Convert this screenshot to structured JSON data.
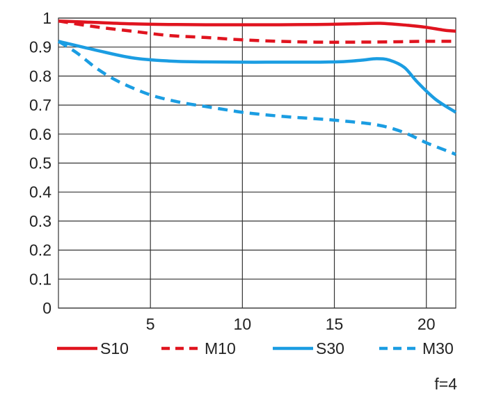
{
  "chart_data": {
    "type": "line",
    "title": "",
    "xlabel": "",
    "ylabel": "",
    "xlim": [
      0,
      21.6
    ],
    "ylim": [
      0,
      1
    ],
    "x_ticks": [
      "5",
      "10",
      "15",
      "20"
    ],
    "y_ticks": [
      "0",
      "0.1",
      "0.2",
      "0.3",
      "0.4",
      "0.5",
      "0.6",
      "0.7",
      "0.8",
      "0.9",
      "1"
    ],
    "grid": true,
    "legend_position": "bottom",
    "note": "f=4",
    "series": [
      {
        "name": "S10",
        "color": "#e0141f",
        "style": "solid",
        "points": [
          [
            0,
            0.99
          ],
          [
            2,
            0.985
          ],
          [
            4,
            0.98
          ],
          [
            6,
            0.978
          ],
          [
            8,
            0.977
          ],
          [
            10,
            0.977
          ],
          [
            12,
            0.977
          ],
          [
            14,
            0.978
          ],
          [
            16,
            0.98
          ],
          [
            17.5,
            0.982
          ],
          [
            19,
            0.975
          ],
          [
            20,
            0.968
          ],
          [
            21,
            0.958
          ],
          [
            21.6,
            0.955
          ]
        ]
      },
      {
        "name": "M10",
        "color": "#e0141f",
        "style": "dashed",
        "points": [
          [
            0,
            0.99
          ],
          [
            2,
            0.97
          ],
          [
            4,
            0.955
          ],
          [
            6,
            0.94
          ],
          [
            8,
            0.933
          ],
          [
            10,
            0.925
          ],
          [
            12,
            0.92
          ],
          [
            14,
            0.917
          ],
          [
            16,
            0.917
          ],
          [
            18,
            0.918
          ],
          [
            20,
            0.92
          ],
          [
            21.6,
            0.92
          ]
        ]
      },
      {
        "name": "S30",
        "color": "#1b9de2",
        "style": "solid",
        "points": [
          [
            0,
            0.92
          ],
          [
            2,
            0.89
          ],
          [
            4,
            0.863
          ],
          [
            6,
            0.852
          ],
          [
            8,
            0.849
          ],
          [
            10,
            0.848
          ],
          [
            12,
            0.848
          ],
          [
            14,
            0.848
          ],
          [
            15.5,
            0.85
          ],
          [
            16.5,
            0.855
          ],
          [
            17.3,
            0.86
          ],
          [
            18,
            0.855
          ],
          [
            18.8,
            0.83
          ],
          [
            19.5,
            0.78
          ],
          [
            20.5,
            0.72
          ],
          [
            21.6,
            0.675
          ]
        ]
      },
      {
        "name": "M30",
        "color": "#1b9de2",
        "style": "dashed",
        "points": [
          [
            0,
            0.92
          ],
          [
            1,
            0.88
          ],
          [
            2,
            0.83
          ],
          [
            3,
            0.79
          ],
          [
            4,
            0.76
          ],
          [
            5,
            0.735
          ],
          [
            6,
            0.718
          ],
          [
            7,
            0.705
          ],
          [
            8,
            0.695
          ],
          [
            9,
            0.685
          ],
          [
            10,
            0.675
          ],
          [
            11,
            0.668
          ],
          [
            12,
            0.662
          ],
          [
            13,
            0.657
          ],
          [
            14,
            0.653
          ],
          [
            15,
            0.648
          ],
          [
            16,
            0.642
          ],
          [
            17,
            0.635
          ],
          [
            18,
            0.622
          ],
          [
            19,
            0.6
          ],
          [
            20,
            0.57
          ],
          [
            21,
            0.545
          ],
          [
            21.6,
            0.53
          ]
        ]
      }
    ]
  }
}
